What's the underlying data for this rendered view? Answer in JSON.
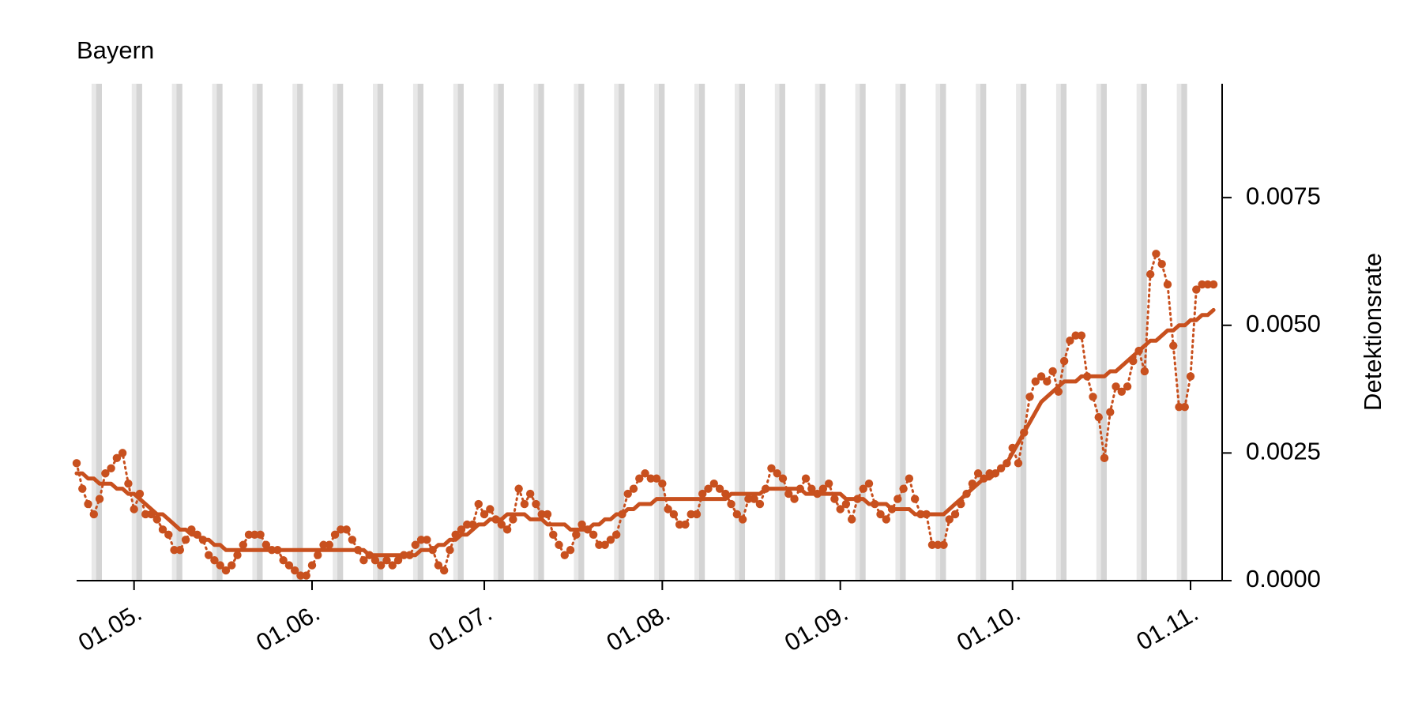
{
  "chart_data": {
    "type": "line",
    "title": "Bayern",
    "y_label": "Detektionsrate",
    "categories": [
      null,
      null,
      null,
      null,
      null,
      null,
      null,
      null,
      null,
      null,
      "01.05.",
      null,
      null,
      null,
      null,
      null,
      null,
      null,
      null,
      null,
      null,
      null,
      null,
      null,
      null,
      null,
      null,
      null,
      null,
      null,
      null,
      null,
      null,
      null,
      null,
      null,
      null,
      null,
      null,
      null,
      null,
      "01.06.",
      null,
      null,
      null,
      null,
      null,
      null,
      null,
      null,
      null,
      null,
      null,
      null,
      null,
      null,
      null,
      null,
      null,
      null,
      null,
      null,
      null,
      null,
      null,
      null,
      null,
      null,
      null,
      null,
      null,
      "01.07.",
      null,
      null,
      null,
      null,
      null,
      null,
      null,
      null,
      null,
      null,
      null,
      null,
      null,
      null,
      null,
      null,
      null,
      null,
      null,
      null,
      null,
      null,
      null,
      null,
      null,
      null,
      null,
      null,
      null,
      null,
      "01.08.",
      null,
      null,
      null,
      null,
      null,
      null,
      null,
      null,
      null,
      null,
      null,
      null,
      null,
      null,
      null,
      null,
      null,
      null,
      null,
      null,
      null,
      null,
      null,
      null,
      null,
      null,
      null,
      null,
      null,
      null,
      "01.09.",
      null,
      null,
      null,
      null,
      null,
      null,
      null,
      null,
      null,
      null,
      null,
      null,
      null,
      null,
      null,
      null,
      null,
      null,
      null,
      null,
      null,
      null,
      null,
      null,
      null,
      null,
      null,
      null,
      null,
      "01.10.",
      null,
      null,
      null,
      null,
      null,
      null,
      null,
      null,
      null,
      null,
      null,
      null,
      null,
      null,
      null,
      null,
      null,
      null,
      null,
      null,
      null,
      null,
      null,
      null,
      null,
      null,
      null,
      null,
      null,
      null,
      "01.11.",
      null,
      null,
      null,
      null
    ],
    "series": [
      {
        "color": "#c8501e",
        "style": "dotted-markers",
        "values": [
          0.0023,
          0.0018,
          0.0015,
          0.0013,
          0.0016,
          0.0021,
          0.0022,
          0.0024,
          0.0025,
          0.0019,
          0.0014,
          0.0017,
          0.0013,
          0.0013,
          0.0012,
          0.001,
          0.0009,
          0.0006,
          0.0006,
          0.0008,
          0.001,
          0.0009,
          0.0008,
          0.0005,
          0.0004,
          0.0003,
          0.0002,
          0.0003,
          0.0005,
          0.0007,
          0.0009,
          0.0009,
          0.0009,
          0.0007,
          0.0006,
          0.0006,
          0.0004,
          0.0003,
          0.0002,
          0.0001,
          0.0001,
          0.0003,
          0.0005,
          0.0007,
          0.0007,
          0.0009,
          0.001,
          0.001,
          0.0008,
          0.0006,
          0.0004,
          0.0005,
          0.0004,
          0.0003,
          0.0004,
          0.0003,
          0.0004,
          0.0005,
          0.0005,
          0.0007,
          0.0008,
          0.0008,
          0.0006,
          0.0003,
          0.0002,
          0.0006,
          0.0009,
          0.001,
          0.0011,
          0.0011,
          0.0015,
          0.0013,
          0.0014,
          0.0012,
          0.0011,
          0.001,
          0.0012,
          0.0018,
          0.0015,
          0.0017,
          0.0015,
          0.0013,
          0.0013,
          0.0009,
          0.0007,
          0.0005,
          0.0006,
          0.0009,
          0.0011,
          0.001,
          0.0009,
          0.0007,
          0.0007,
          0.0008,
          0.0009,
          0.0013,
          0.0017,
          0.0018,
          0.002,
          0.0021,
          0.002,
          0.002,
          0.0019,
          0.0014,
          0.0013,
          0.0011,
          0.0011,
          0.0013,
          0.0013,
          0.0017,
          0.0018,
          0.0019,
          0.0018,
          0.0017,
          0.0015,
          0.0013,
          0.0012,
          0.0016,
          0.0016,
          0.0015,
          0.0018,
          0.0022,
          0.0021,
          0.002,
          0.0017,
          0.0016,
          0.0018,
          0.002,
          0.0018,
          0.0017,
          0.0018,
          0.0019,
          0.0016,
          0.0014,
          0.0015,
          0.0012,
          0.0016,
          0.0018,
          0.0019,
          0.0015,
          0.0013,
          0.0012,
          0.0014,
          0.0016,
          0.0018,
          0.002,
          0.0016,
          0.0013,
          0.0013,
          0.0007,
          0.0007,
          0.0007,
          0.0012,
          0.0013,
          0.0015,
          0.0017,
          0.0019,
          0.0021,
          0.002,
          0.0021,
          0.0021,
          0.0022,
          0.0023,
          0.0026,
          0.0023,
          0.0029,
          0.0036,
          0.0039,
          0.004,
          0.0039,
          0.0041,
          0.0037,
          0.0043,
          0.0047,
          0.0048,
          0.0048,
          0.004,
          0.0036,
          0.0032,
          0.0024,
          0.0033,
          0.0038,
          0.0037,
          0.0038,
          0.0043,
          0.0045,
          0.0041,
          0.006,
          0.0064,
          0.0062,
          0.0058,
          0.0046,
          0.0034,
          0.0034,
          0.004,
          0.0057,
          0.0058,
          0.0058,
          0.0058
        ]
      },
      {
        "color": "#c8501e",
        "style": "smooth",
        "values": [
          0.0021,
          0.0021,
          0.002,
          0.002,
          0.0019,
          0.0019,
          0.0019,
          0.0018,
          0.0018,
          0.0017,
          0.0017,
          0.0016,
          0.0015,
          0.0014,
          0.0013,
          0.0013,
          0.0012,
          0.0011,
          0.001,
          0.001,
          0.0009,
          0.0009,
          0.0008,
          0.0008,
          0.0007,
          0.0007,
          0.0006,
          0.0006,
          0.0006,
          0.0006,
          0.0006,
          0.0006,
          0.0006,
          0.0006,
          0.0006,
          0.0006,
          0.0006,
          0.0006,
          0.0006,
          0.0006,
          0.0006,
          0.0006,
          0.0006,
          0.0006,
          0.0006,
          0.0006,
          0.0006,
          0.0006,
          0.0006,
          0.0006,
          0.0006,
          0.0005,
          0.0005,
          0.0005,
          0.0005,
          0.0005,
          0.0005,
          0.0005,
          0.0005,
          0.0005,
          0.0006,
          0.0006,
          0.0006,
          0.0007,
          0.0007,
          0.0008,
          0.0008,
          0.0009,
          0.0009,
          0.001,
          0.0011,
          0.0011,
          0.0012,
          0.0012,
          0.0012,
          0.0013,
          0.0013,
          0.0013,
          0.0013,
          0.0012,
          0.0012,
          0.0012,
          0.0011,
          0.0011,
          0.0011,
          0.0011,
          0.001,
          0.001,
          0.001,
          0.001,
          0.0011,
          0.0011,
          0.0012,
          0.0012,
          0.0013,
          0.0013,
          0.0014,
          0.0014,
          0.0015,
          0.0015,
          0.0015,
          0.0016,
          0.0016,
          0.0016,
          0.0016,
          0.0016,
          0.0016,
          0.0016,
          0.0016,
          0.0016,
          0.0016,
          0.0016,
          0.0016,
          0.0016,
          0.0017,
          0.0017,
          0.0017,
          0.0017,
          0.0017,
          0.0017,
          0.0018,
          0.0018,
          0.0018,
          0.0018,
          0.0018,
          0.0018,
          0.0018,
          0.0017,
          0.0017,
          0.0017,
          0.0017,
          0.0017,
          0.0017,
          0.0017,
          0.0016,
          0.0016,
          0.0016,
          0.0016,
          0.0015,
          0.0015,
          0.0015,
          0.0015,
          0.0014,
          0.0014,
          0.0014,
          0.0014,
          0.0013,
          0.0013,
          0.0013,
          0.0013,
          0.0013,
          0.0013,
          0.0014,
          0.0015,
          0.0016,
          0.0017,
          0.0018,
          0.0019,
          0.002,
          0.002,
          0.0021,
          0.0022,
          0.0023,
          0.0025,
          0.0027,
          0.0029,
          0.0031,
          0.0033,
          0.0035,
          0.0036,
          0.0037,
          0.0038,
          0.0039,
          0.0039,
          0.0039,
          0.004,
          0.004,
          0.004,
          0.004,
          0.004,
          0.0041,
          0.0041,
          0.0042,
          0.0043,
          0.0044,
          0.0045,
          0.0046,
          0.0047,
          0.0047,
          0.0048,
          0.0049,
          0.0049,
          0.005,
          0.005,
          0.0051,
          0.0051,
          0.0052,
          0.0052,
          0.0053
        ]
      }
    ],
    "ylim": [
      0,
      0.00973
    ],
    "yticks": [
      {
        "value": 0,
        "label": "0.0000"
      },
      {
        "value": 0.0025,
        "label": "0.0025"
      },
      {
        "value": 0.005,
        "label": "0.0050"
      },
      {
        "value": 0.0075,
        "label": "0.0075"
      }
    ]
  }
}
